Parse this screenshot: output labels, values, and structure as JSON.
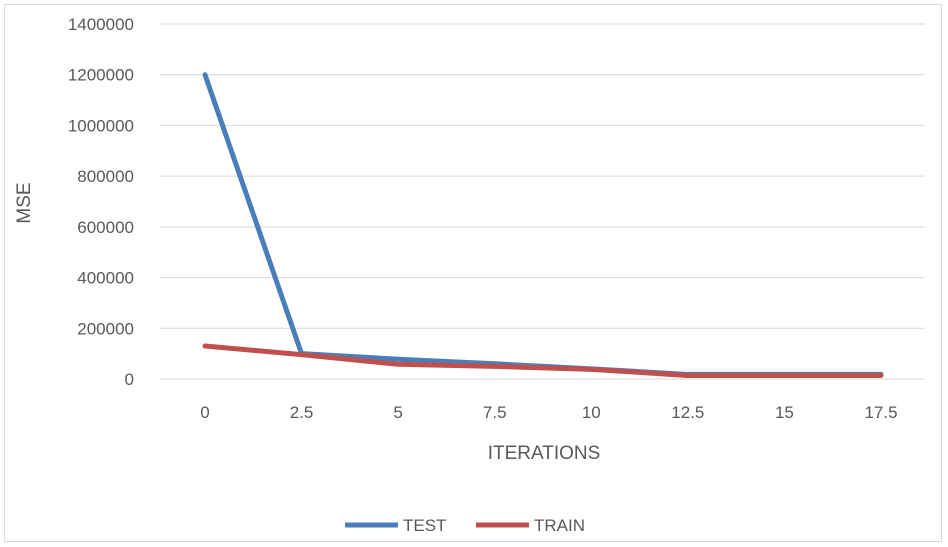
{
  "chart_data": {
    "type": "line",
    "xlabel": "ITERATIONS",
    "ylabel": "MSE",
    "x": [
      0,
      2.5,
      5,
      7.5,
      10,
      12.5,
      15,
      17.5
    ],
    "x_tick_labels": [
      "0",
      "2.5",
      "5",
      "7.5",
      "10",
      "12.5",
      "15",
      "17.5"
    ],
    "y_ticks": [
      0,
      200000,
      400000,
      600000,
      800000,
      1000000,
      1200000,
      1400000
    ],
    "y_tick_labels": [
      "0",
      "200000",
      "400000",
      "600000",
      "800000",
      "1000000",
      "1200000",
      "1400000"
    ],
    "ylim": [
      0,
      1400000
    ],
    "grid": "horizontal",
    "legend_position": "bottom",
    "series": [
      {
        "name": "TEST",
        "color": "#4a7ebb",
        "values": [
          1200000,
          100000,
          78000,
          60000,
          40000,
          18000,
          18000,
          18000
        ]
      },
      {
        "name": "TRAIN",
        "color": "#c0504d",
        "values": [
          130000,
          96000,
          58000,
          50000,
          38000,
          14000,
          14000,
          14000
        ]
      }
    ]
  }
}
